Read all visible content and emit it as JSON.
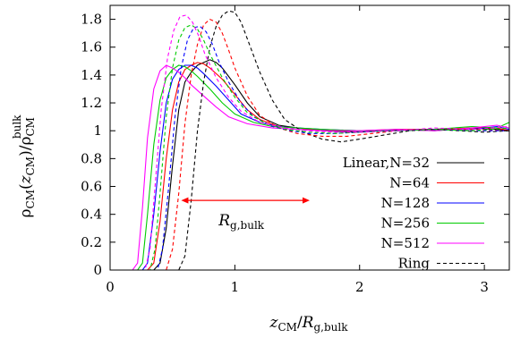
{
  "chart_data": {
    "type": "line",
    "xlabel": "z_CM/R_g,bulk",
    "ylabel": "ρ_CM(z_CM)/ρ_CM^bulk",
    "xlim": [
      0,
      3.2
    ],
    "ylim": [
      0,
      1.9
    ],
    "xticks": [
      "0",
      "1",
      "2",
      "3"
    ],
    "yticks": [
      "0",
      "0.2",
      "0.4",
      "0.6",
      "0.8",
      "1",
      "1.2",
      "1.4",
      "1.6",
      "1.8"
    ],
    "grid": false,
    "legend_position": "bottom-right",
    "legend_entries": [
      "Linear,N=32",
      "N=64",
      "N=128",
      "N=256",
      "N=512",
      "Ring"
    ],
    "annotation": {
      "text_main": "R",
      "text_sub": "g,bulk",
      "arrow_x": [
        0.57,
        1.6
      ],
      "arrow_y": 0.5,
      "color": "#ff0000"
    },
    "series": [
      {
        "key": "linear",
        "color": "#000000",
        "style": "solid",
        "x": [
          0,
          0.35,
          0.4,
          0.45,
          0.5,
          0.55,
          0.6,
          0.65,
          0.7,
          0.75,
          0.8,
          0.85,
          0.9,
          1.0,
          1.1,
          1.2,
          1.35,
          1.5,
          1.7,
          2.0,
          2.3,
          2.6,
          2.9,
          3.1,
          3.2
        ],
        "y": [
          0,
          0,
          0.05,
          0.3,
          0.75,
          1.15,
          1.35,
          1.42,
          1.47,
          1.49,
          1.51,
          1.49,
          1.45,
          1.33,
          1.2,
          1.1,
          1.04,
          1.02,
          1.0,
          0.99,
          1.01,
          1.0,
          1.02,
          1.01,
          1.0
        ]
      },
      {
        "key": "n64",
        "color": "#ff0000",
        "style": "solid",
        "x": [
          0,
          0.3,
          0.35,
          0.4,
          0.45,
          0.5,
          0.55,
          0.6,
          0.65,
          0.7,
          0.75,
          0.8,
          0.9,
          1.0,
          1.1,
          1.2,
          1.35,
          1.5,
          1.7,
          2.0,
          2.3,
          2.6,
          2.9,
          3.1,
          3.2
        ],
        "y": [
          0,
          0,
          0.05,
          0.35,
          0.8,
          1.15,
          1.35,
          1.44,
          1.47,
          1.49,
          1.48,
          1.45,
          1.37,
          1.26,
          1.15,
          1.08,
          1.03,
          1.02,
          1.0,
          1.0,
          1.01,
          1.01,
          1.02,
          1.02,
          1.0
        ]
      },
      {
        "key": "n128",
        "color": "#0000ff",
        "style": "solid",
        "x": [
          0,
          0.26,
          0.3,
          0.35,
          0.4,
          0.45,
          0.5,
          0.55,
          0.6,
          0.65,
          0.7,
          0.75,
          0.85,
          0.95,
          1.05,
          1.2,
          1.35,
          1.5,
          1.7,
          2.0,
          2.3,
          2.6,
          2.9,
          3.1,
          3.2
        ],
        "y": [
          0,
          0,
          0.05,
          0.4,
          0.85,
          1.2,
          1.37,
          1.44,
          1.47,
          1.47,
          1.45,
          1.41,
          1.32,
          1.22,
          1.12,
          1.06,
          1.03,
          1.02,
          1.01,
          1.0,
          1.0,
          1.01,
          1.01,
          1.03,
          1.01
        ]
      },
      {
        "key": "n256",
        "color": "#00cc00",
        "style": "solid",
        "x": [
          0,
          0.22,
          0.26,
          0.3,
          0.35,
          0.4,
          0.45,
          0.5,
          0.55,
          0.6,
          0.65,
          0.7,
          0.8,
          0.9,
          1.0,
          1.15,
          1.3,
          1.5,
          1.7,
          2.0,
          2.3,
          2.6,
          2.9,
          3.1,
          3.2
        ],
        "y": [
          0,
          0,
          0.05,
          0.4,
          0.9,
          1.22,
          1.38,
          1.44,
          1.47,
          1.46,
          1.43,
          1.39,
          1.3,
          1.2,
          1.12,
          1.06,
          1.03,
          1.02,
          1.01,
          1.0,
          1.0,
          1.01,
          1.03,
          1.02,
          1.06
        ]
      },
      {
        "key": "n512",
        "color": "#ff00ff",
        "style": "solid",
        "x": [
          0,
          0.18,
          0.22,
          0.26,
          0.3,
          0.35,
          0.4,
          0.45,
          0.5,
          0.55,
          0.6,
          0.65,
          0.75,
          0.85,
          0.95,
          1.1,
          1.3,
          1.5,
          1.7,
          2.0,
          2.3,
          2.6,
          2.9,
          3.1,
          3.2
        ],
        "y": [
          0,
          0,
          0.05,
          0.45,
          0.95,
          1.3,
          1.43,
          1.47,
          1.45,
          1.42,
          1.38,
          1.33,
          1.25,
          1.17,
          1.1,
          1.05,
          1.02,
          1.01,
          1.0,
          1.0,
          1.01,
          1.0,
          1.02,
          1.04,
          1.02
        ]
      },
      {
        "key": "ring",
        "color": "#000000",
        "style": "dashed",
        "x": [
          0,
          0.55,
          0.6,
          0.65,
          0.7,
          0.75,
          0.8,
          0.85,
          0.9,
          0.95,
          1.0,
          1.05,
          1.1,
          1.2,
          1.3,
          1.4,
          1.55,
          1.7,
          1.85,
          2.0,
          2.2,
          2.4,
          2.6,
          2.8,
          3.0,
          3.2
        ],
        "y": [
          0,
          0,
          0.1,
          0.5,
          1.0,
          1.35,
          1.6,
          1.75,
          1.83,
          1.86,
          1.85,
          1.78,
          1.66,
          1.42,
          1.22,
          1.08,
          0.99,
          0.94,
          0.92,
          0.94,
          0.97,
          1.0,
          1.01,
          1.0,
          0.99,
          1.0
        ]
      },
      {
        "key": "ring-red",
        "color": "#ff0000",
        "style": "dashed",
        "x": [
          0,
          0.45,
          0.5,
          0.55,
          0.6,
          0.65,
          0.7,
          0.75,
          0.8,
          0.85,
          0.9,
          0.95,
          1.0,
          1.1,
          1.2,
          1.35,
          1.5,
          1.7,
          1.9,
          2.1,
          2.3,
          2.6,
          2.9,
          3.2
        ],
        "y": [
          0,
          0,
          0.15,
          0.55,
          1.05,
          1.4,
          1.62,
          1.76,
          1.8,
          1.78,
          1.7,
          1.58,
          1.45,
          1.25,
          1.11,
          1.02,
          0.98,
          0.96,
          0.96,
          0.98,
          1.0,
          1.01,
          1.01,
          1.0
        ]
      },
      {
        "key": "ring-blue",
        "color": "#0000ff",
        "style": "dashed",
        "x": [
          0,
          0.38,
          0.42,
          0.47,
          0.52,
          0.57,
          0.62,
          0.67,
          0.72,
          0.77,
          0.82,
          0.87,
          0.95,
          1.05,
          1.15,
          1.3,
          1.45,
          1.6,
          1.8,
          2.0,
          2.3,
          2.6,
          2.9,
          3.2
        ],
        "y": [
          0,
          0,
          0.15,
          0.6,
          1.1,
          1.45,
          1.65,
          1.74,
          1.75,
          1.71,
          1.62,
          1.5,
          1.35,
          1.2,
          1.1,
          1.03,
          1.0,
          0.98,
          0.98,
          0.99,
          1.0,
          1.01,
          1.0,
          1.0
        ]
      },
      {
        "key": "ring-green",
        "color": "#00cc00",
        "style": "dashed",
        "x": [
          0,
          0.32,
          0.36,
          0.4,
          0.45,
          0.5,
          0.55,
          0.6,
          0.65,
          0.7,
          0.75,
          0.8,
          0.9,
          1.0,
          1.1,
          1.25,
          1.4,
          1.6,
          1.8,
          2.0,
          2.3,
          2.6,
          2.9,
          3.2
        ],
        "y": [
          0,
          0,
          0.15,
          0.55,
          1.1,
          1.45,
          1.65,
          1.74,
          1.76,
          1.73,
          1.65,
          1.55,
          1.38,
          1.24,
          1.13,
          1.05,
          1.01,
          0.99,
          0.98,
          0.99,
          1.0,
          1.01,
          1.0,
          1.02
        ]
      },
      {
        "key": "ring-magenta",
        "color": "#ff00ff",
        "style": "dashed",
        "x": [
          0,
          0.28,
          0.32,
          0.36,
          0.41,
          0.46,
          0.51,
          0.56,
          0.61,
          0.66,
          0.71,
          0.76,
          0.85,
          0.95,
          1.05,
          1.2,
          1.4,
          1.6,
          1.8,
          2.0,
          2.3,
          2.6,
          2.9,
          3.2
        ],
        "y": [
          0,
          0,
          0.15,
          0.6,
          1.15,
          1.52,
          1.72,
          1.82,
          1.83,
          1.78,
          1.68,
          1.55,
          1.38,
          1.24,
          1.14,
          1.06,
          1.02,
          1.0,
          0.99,
          0.99,
          1.0,
          1.02,
          1.01,
          1.03
        ]
      }
    ]
  }
}
